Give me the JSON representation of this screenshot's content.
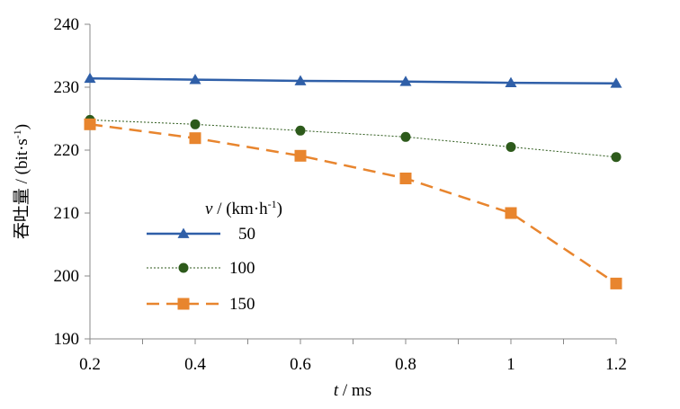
{
  "chart_data": {
    "type": "line",
    "title": "",
    "xlabel": "t",
    "xlabel_unit": "/ ms",
    "ylabel": "吞吐量",
    "ylabel_unit": "/ (bit·s",
    "ylabel_sup": "-1",
    "ylabel_close": ")",
    "x": [
      0.2,
      0.4,
      0.6,
      0.8,
      1.0,
      1.2
    ],
    "x_tick_labels": [
      "0.2",
      "0.4",
      "0.6",
      "0.8",
      "1",
      "1.2"
    ],
    "xlim": [
      0.2,
      1.2
    ],
    "ylim": [
      190,
      240
    ],
    "y_ticks": [
      190,
      200,
      210,
      220,
      230,
      240
    ],
    "y_tick_labels": [
      "190",
      "200",
      "210",
      "220",
      "230",
      "240"
    ],
    "grid": false,
    "legend": {
      "placement": "left-middle",
      "title_var": "v",
      "title_unit": "/ (km·h",
      "title_sup": "-1",
      "title_close": ")"
    },
    "series": [
      {
        "name": "50",
        "color": "#2f5fa8",
        "marker": "triangle",
        "line": "solid",
        "values": [
          231.4,
          231.2,
          231.0,
          230.9,
          230.7,
          230.6
        ]
      },
      {
        "name": "100",
        "color": "#2d5a1b",
        "marker": "circle",
        "line": "dotted",
        "values": [
          224.8,
          224.1,
          223.1,
          222.1,
          220.5,
          218.9
        ]
      },
      {
        "name": "150",
        "color": "#e8852e",
        "marker": "square",
        "line": "dashed",
        "values": [
          224.1,
          221.9,
          219.1,
          215.5,
          210.0,
          198.8
        ]
      }
    ]
  }
}
